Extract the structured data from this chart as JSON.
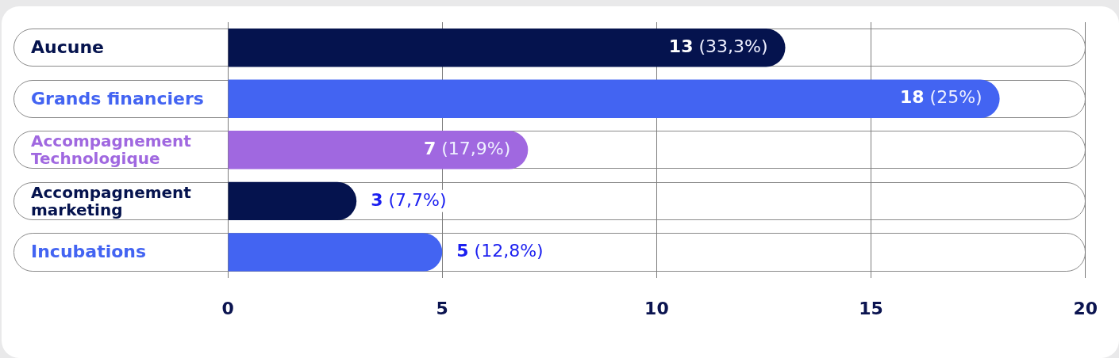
{
  "chart_data": {
    "type": "bar",
    "orientation": "horizontal",
    "categories": [
      "Aucune",
      "Grands financiers",
      "Accompagnement Technologique",
      "Accompagnement marketing",
      "Incubations"
    ],
    "values": [
      13,
      18,
      7,
      3,
      5
    ],
    "colors": [
      "#05134e",
      "#4364f2",
      "#a068e0",
      "#05134e",
      "#4364f2"
    ],
    "value_labels": [
      "13 (33,3%)",
      "18 (25%)",
      "7 (17,9%)",
      "3 (7,7%)",
      "5 (12,8%)"
    ],
    "xlim": [
      -5,
      20
    ],
    "xticks": [
      0,
      5,
      10,
      15,
      20
    ],
    "grid": "x"
  }
}
